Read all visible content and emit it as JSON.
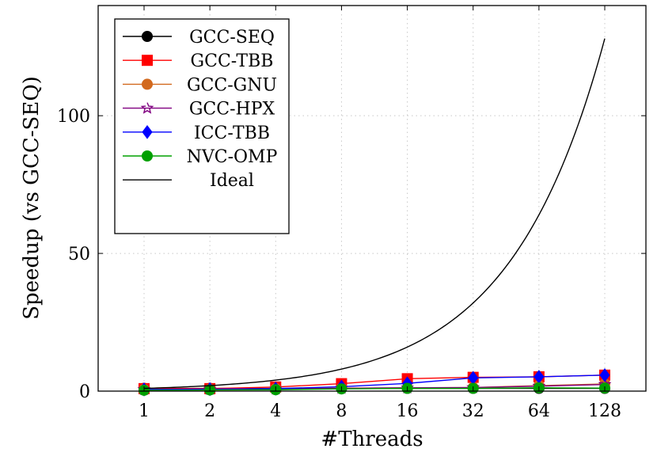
{
  "chart_data": {
    "type": "line",
    "title": "",
    "xlabel": "#Threads",
    "ylabel": "Speedup (vs GCC-SEQ)",
    "x": [
      1,
      2,
      4,
      8,
      16,
      32,
      64,
      128
    ],
    "xticks": [
      "1",
      "2",
      "4",
      "8",
      "16",
      "32",
      "64",
      "128"
    ],
    "yticks": [
      "0",
      "50",
      "100"
    ],
    "ylim": [
      0,
      140
    ],
    "x_scale": "log2",
    "grid": true,
    "legend_position": "top-left",
    "series": [
      {
        "name": "GCC-SEQ",
        "color": "#000000",
        "marker": "circle",
        "values": [
          1,
          1,
          1,
          1,
          1,
          1,
          1,
          1
        ]
      },
      {
        "name": "GCC-TBB",
        "color": "#ff0000",
        "marker": "square",
        "values": [
          0.9,
          0.9,
          1.5,
          2.7,
          4.5,
          5.0,
          5.2,
          5.8
        ]
      },
      {
        "name": "GCC-GNU",
        "color": "#d2691e",
        "marker": "circle",
        "values": [
          0.6,
          0.7,
          0.9,
          1.1,
          1.2,
          1.3,
          2.0,
          2.6
        ]
      },
      {
        "name": "GCC-HPX",
        "color": "#800080",
        "marker": "star",
        "values": [
          0.6,
          0.7,
          0.8,
          1.0,
          1.2,
          1.3,
          1.8,
          2.4
        ]
      },
      {
        "name": "ICC-TBB",
        "color": "#0000ff",
        "marker": "diamond",
        "values": [
          0.6,
          0.7,
          0.9,
          1.6,
          2.8,
          4.8,
          5.2,
          5.8
        ]
      },
      {
        "name": "NVC-OMP",
        "color": "#00a000",
        "marker": "circle",
        "values": [
          0.3,
          0.4,
          0.5,
          0.8,
          1.0,
          1.0,
          1.2,
          1.1
        ]
      },
      {
        "name": "Ideal",
        "color": "#000000",
        "marker": "none",
        "smooth": true,
        "values": [
          1,
          2,
          4,
          8,
          16,
          32,
          64,
          128
        ]
      }
    ]
  }
}
